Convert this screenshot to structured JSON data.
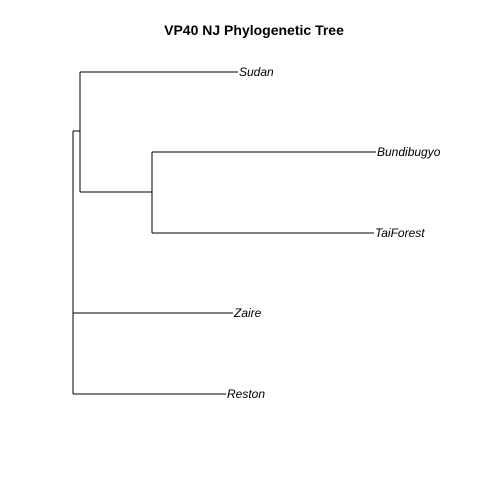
{
  "title": "VP40 NJ Phylogenetic Tree",
  "colors": {
    "background": "#ffffff",
    "branch": "#000000",
    "text": "#000000"
  },
  "tree": {
    "method": "NJ",
    "tips": [
      "Sudan",
      "Bundibugyo",
      "TaiForest",
      "Zaire",
      "Reston"
    ],
    "newick": "((Sudan,(Bundibugyo,TaiForest)),Zaire,Reston);"
  }
}
